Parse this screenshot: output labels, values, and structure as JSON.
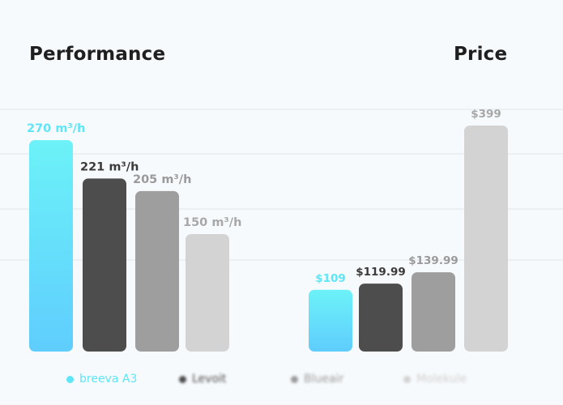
{
  "chart_data": [
    {
      "type": "bar",
      "title": "Performance",
      "categories": [
        "breeva A3",
        "Levoit",
        "Blueair",
        "Molekule"
      ],
      "values": [
        270,
        221,
        205,
        150
      ],
      "data_labels": [
        "270 m³/h",
        "221 m³/h",
        "205 m³/h",
        "150 m³/h"
      ],
      "unit": "m³/h",
      "ylim": [
        0,
        300
      ],
      "grid": true
    },
    {
      "type": "bar",
      "title": "Price",
      "categories": [
        "breeva A3",
        "Levoit",
        "Blueair",
        "Molekule"
      ],
      "values": [
        109,
        119.99,
        139.99,
        399
      ],
      "data_labels": [
        "$109",
        "$119.99",
        "$139.99",
        "$399"
      ],
      "unit": "$",
      "ylim": [
        0,
        450
      ],
      "grid": true
    }
  ],
  "legend": {
    "placement": "bottom",
    "items": [
      {
        "label": "breeva A3",
        "color": "#5ee6f8",
        "label_color": "#5ee6f8",
        "blurred": false
      },
      {
        "label": "Levoit",
        "color": "#4d4d4d",
        "label_color": "#4d4d4d",
        "blurred": true
      },
      {
        "label": "Blueair",
        "color": "#9a9a9a",
        "label_color": "#9a9a9a",
        "blurred": true
      },
      {
        "label": "Molekule",
        "color": "#d2d2d2",
        "label_color": "#cfcfcf",
        "blurred": true
      }
    ]
  },
  "colors": {
    "accent": "#5ee6f8",
    "bar_colors": [
      "gradient-cyan",
      "#4d4d4d",
      "#9e9e9e",
      "#d3d3d3"
    ],
    "label_colors": [
      "#5ee6f8",
      "#3a3a3a",
      "#9a9a9a",
      "#a8a8a8"
    ],
    "gridline": "#e2e6ea",
    "background": "#f7fafc"
  }
}
